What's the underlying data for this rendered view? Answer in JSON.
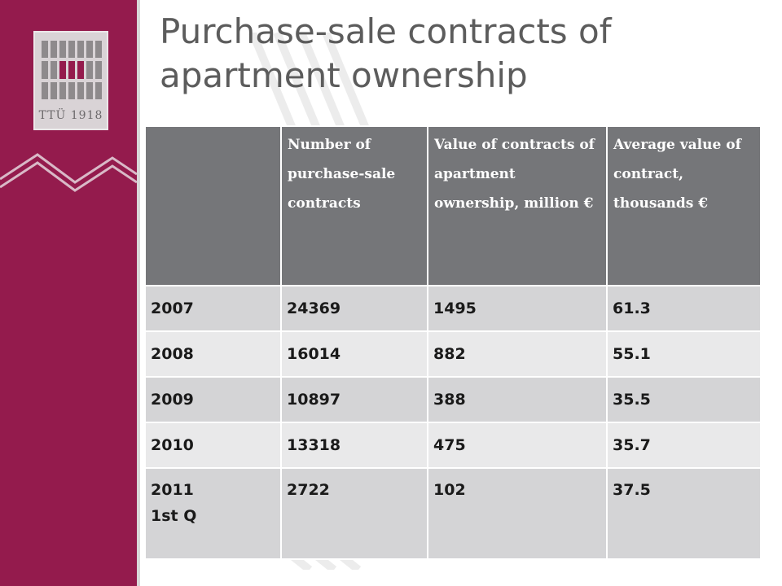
{
  "title": "Purchase-sale contracts of apartment ownership",
  "logo": {
    "text": "TTÜ 1918"
  },
  "colors": {
    "sidebar": "#941b4d",
    "header_fill": "#757679",
    "row_fill_dark": "#d4d4d6",
    "row_fill_light": "#e9e9ea",
    "title_text": "#5c5c5c"
  },
  "table": {
    "columns": [
      "",
      "Number of purchase-sale contracts",
      "Value of contracts of apartment ownership, million €",
      "Average value of contract, thousands €"
    ],
    "rows": [
      {
        "year": "2007",
        "year_sub": "",
        "contracts": "24369",
        "value": "1495",
        "average": "61.3"
      },
      {
        "year": "2008",
        "year_sub": "",
        "contracts": "16014",
        "value": "882",
        "average": "55.1"
      },
      {
        "year": "2009",
        "year_sub": "",
        "contracts": "10897",
        "value": "388",
        "average": "35.5"
      },
      {
        "year": "2010",
        "year_sub": "",
        "contracts": "13318",
        "value": "475",
        "average": "35.7"
      },
      {
        "year": "2011",
        "year_sub": "1st Q",
        "contracts": "2722",
        "value": "102",
        "average": "37.5"
      }
    ]
  }
}
